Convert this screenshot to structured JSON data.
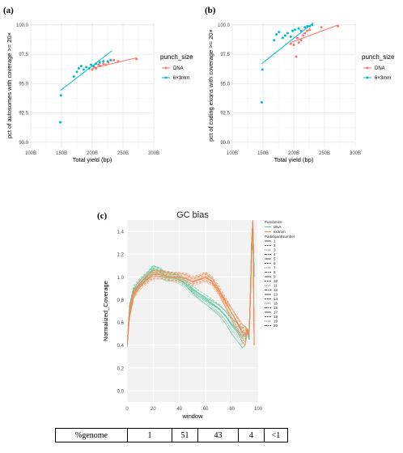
{
  "panels": {
    "a": {
      "label": "(a)"
    },
    "b": {
      "label": "(b)"
    },
    "c": {
      "label": "(c)"
    }
  },
  "chart_data": [
    {
      "type": "scatter",
      "xlabel": "Total yield (bp)",
      "ylabel": "pct of autosomes with coverage >= 20×",
      "x_ticks": [
        "100B",
        "150B",
        "200B",
        "250B",
        "300B"
      ],
      "y_ticks": [
        "90.0",
        "92.5",
        "95.0",
        "97.5",
        "100.0"
      ],
      "xlim": [
        100,
        300
      ],
      "ylim": [
        89.5,
        100.2
      ],
      "legend_title": "punch_size",
      "legend_position": "right",
      "grid": true,
      "series": [
        {
          "name": "DNA",
          "color": "#F8766D",
          "x": [
            200,
            203,
            206,
            210,
            213,
            218,
            222,
            226,
            235,
            242,
            272
          ],
          "y": [
            96.2,
            96.4,
            96.3,
            96.6,
            96.5,
            96.7,
            96.6,
            96.8,
            97.0,
            96.9,
            97.1
          ],
          "fit": [
            [
              200,
              96.3
            ],
            [
              272,
              97.2
            ]
          ]
        },
        {
          "name": "6×3mm",
          "color": "#00BFC4",
          "x": [
            148,
            149,
            170,
            175,
            178,
            182,
            186,
            190,
            195,
            198,
            202,
            206,
            212,
            218,
            225,
            230
          ],
          "y": [
            91.7,
            94.0,
            95.6,
            96.0,
            96.3,
            96.5,
            96.2,
            96.4,
            96.3,
            96.6,
            96.5,
            96.7,
            96.8,
            96.9,
            96.9,
            97.0
          ],
          "fit": [
            [
              148,
              94.4
            ],
            [
              232,
              97.8
            ]
          ]
        }
      ]
    },
    {
      "type": "scatter",
      "xlabel": "Total yield (bp)",
      "ylabel": "pct of coding exons with coverage >= 20×",
      "x_ticks": [
        "100B",
        "150B",
        "200B",
        "250B",
        "300B"
      ],
      "y_ticks": [
        "90.0",
        "92.5",
        "95.0",
        "97.5",
        "100.0"
      ],
      "xlim": [
        100,
        300
      ],
      "ylim": [
        89.5,
        100.2
      ],
      "legend_title": "punch_size",
      "legend_position": "right",
      "grid": true,
      "series": [
        {
          "name": "DNA",
          "color": "#F8766D",
          "x": [
            195,
            200,
            204,
            206,
            208,
            212,
            215,
            218,
            222,
            226,
            245,
            272
          ],
          "y": [
            98.4,
            98.3,
            97.3,
            98.9,
            98.5,
            98.7,
            99.1,
            99.3,
            99.5,
            99.6,
            99.8,
            99.9
          ],
          "fit": [
            [
              195,
              98.5
            ],
            [
              272,
              100.0
            ]
          ]
        },
        {
          "name": "6×3mm",
          "color": "#00BFC4",
          "x": [
            148,
            149,
            168,
            172,
            176,
            182,
            186,
            190,
            195,
            198,
            202,
            208,
            212,
            218,
            222,
            226,
            230
          ],
          "y": [
            93.4,
            96.2,
            98.7,
            99.2,
            99.4,
            98.9,
            99.1,
            99.3,
            99.0,
            99.5,
            99.6,
            99.7,
            99.5,
            99.8,
            99.9,
            99.9,
            100.0
          ],
          "fit": [
            [
              148,
              96.7
            ],
            [
              232,
              100.2
            ]
          ]
        }
      ]
    },
    {
      "type": "line",
      "title": "GC bias",
      "xlabel": "window",
      "ylabel": "Normalized_Coverage",
      "x_ticks": [
        0,
        20,
        40,
        60,
        80,
        100
      ],
      "y_ticks": [
        "0.0",
        "0.2",
        "0.4",
        "0.6",
        "0.8",
        "1.0",
        "1.2",
        "1.4"
      ],
      "xlim": [
        0,
        100
      ],
      "ylim": [
        -0.1,
        1.5
      ],
      "legend": {
        "title1": "PunchSize",
        "items1": [
          {
            "name": "DNA",
            "color": "#5FC8A0"
          },
          {
            "name": "6x3mm",
            "color": "#F08A50"
          }
        ],
        "title2": "ParticipantNumber",
        "items2": [
          "1",
          "2",
          "3",
          "4",
          "5",
          "6",
          "7",
          "8",
          "9",
          "10",
          "11",
          "12",
          "13",
          "14",
          "15",
          "16",
          "17",
          "18",
          "19",
          "20"
        ]
      },
      "series": [
        {
          "name": "DNA",
          "color": "#5FC8A0",
          "x": [
            0,
            2,
            5,
            10,
            15,
            20,
            25,
            30,
            35,
            40,
            45,
            50,
            55,
            60,
            65,
            70,
            75,
            80,
            85,
            88,
            90,
            92,
            93,
            94,
            95,
            96,
            97
          ],
          "y": [
            0.38,
            0.72,
            0.88,
            0.95,
            1.0,
            1.06,
            1.04,
            1.0,
            1.0,
            0.98,
            0.94,
            0.88,
            0.84,
            0.8,
            0.76,
            0.72,
            0.66,
            0.58,
            0.52,
            0.48,
            0.5,
            0.52,
            0.45,
            0.78,
            1.2,
            1.45,
            1.0
          ]
        },
        {
          "name": "6x3mm",
          "color": "#F08A50",
          "x": [
            0,
            2,
            5,
            10,
            15,
            20,
            25,
            30,
            35,
            40,
            45,
            50,
            55,
            60,
            65,
            70,
            75,
            80,
            85,
            88,
            90,
            92,
            93,
            94,
            95,
            96,
            97
          ],
          "y": [
            0.4,
            0.7,
            0.85,
            0.93,
            0.98,
            1.02,
            1.02,
            1.01,
            1.0,
            1.0,
            0.99,
            0.96,
            0.98,
            1.0,
            0.96,
            0.88,
            0.78,
            0.68,
            0.58,
            0.52,
            0.5,
            0.54,
            0.48,
            0.82,
            1.3,
            1.5,
            0.4
          ]
        }
      ]
    }
  ],
  "genome_table": {
    "header": "%genome",
    "values": [
      "1",
      "51",
      "43",
      "4",
      "<1"
    ]
  }
}
